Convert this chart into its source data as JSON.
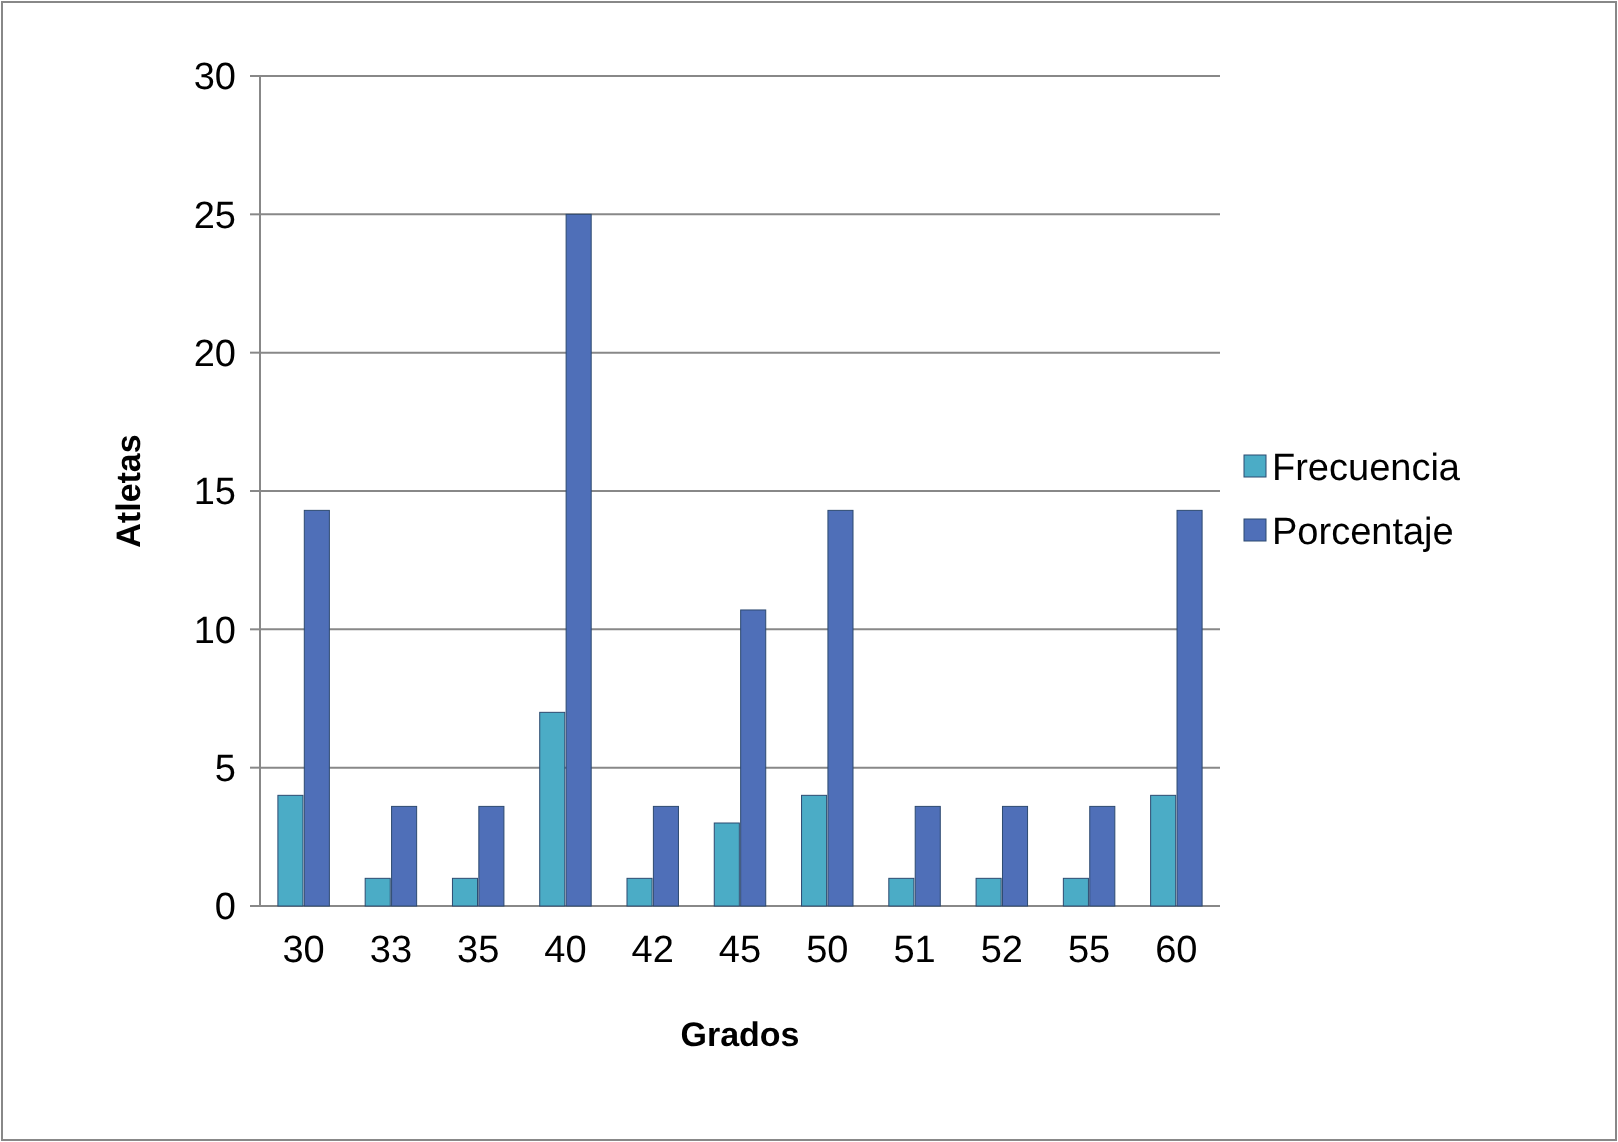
{
  "chart_data": {
    "type": "bar",
    "xlabel": "Grados",
    "ylabel": "Atletas",
    "categories": [
      "30",
      "33",
      "35",
      "40",
      "42",
      "45",
      "50",
      "51",
      "52",
      "55",
      "60"
    ],
    "series": [
      {
        "name": "Frecuencia",
        "color": "#4bacc6",
        "values": [
          4,
          1,
          1,
          7,
          1,
          3,
          4,
          1,
          1,
          1,
          4
        ]
      },
      {
        "name": "Porcentaje",
        "color": "#4f6fb8",
        "values": [
          14.3,
          3.6,
          3.6,
          25,
          3.6,
          10.7,
          14.3,
          3.6,
          3.6,
          3.6,
          14.3
        ]
      }
    ],
    "ylim": [
      0,
      30
    ],
    "yticks": [
      0,
      5,
      10,
      15,
      20,
      25,
      30
    ],
    "grid": "y",
    "legend": "right"
  }
}
